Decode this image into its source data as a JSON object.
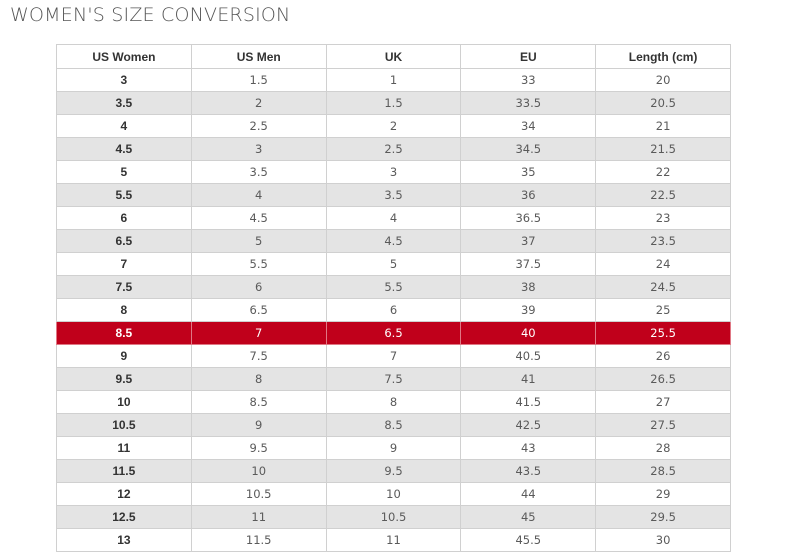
{
  "title": "WOMEN'S SIZE CONVERSION",
  "colors": {
    "highlight_row": "#c0001b",
    "stripe": "#e4e4e4",
    "title": "#555555"
  },
  "table": {
    "headers": [
      "US Women",
      "US Men",
      "UK",
      "EU",
      "Length (cm)"
    ],
    "highlighted_row_index": 11,
    "rows": [
      [
        "3",
        "1.5",
        "1",
        "33",
        "20"
      ],
      [
        "3.5",
        "2",
        "1.5",
        "33.5",
        "20.5"
      ],
      [
        "4",
        "2.5",
        "2",
        "34",
        "21"
      ],
      [
        "4.5",
        "3",
        "2.5",
        "34.5",
        "21.5"
      ],
      [
        "5",
        "3.5",
        "3",
        "35",
        "22"
      ],
      [
        "5.5",
        "4",
        "3.5",
        "36",
        "22.5"
      ],
      [
        "6",
        "4.5",
        "4",
        "36.5",
        "23"
      ],
      [
        "6.5",
        "5",
        "4.5",
        "37",
        "23.5"
      ],
      [
        "7",
        "5.5",
        "5",
        "37.5",
        "24"
      ],
      [
        "7.5",
        "6",
        "5.5",
        "38",
        "24.5"
      ],
      [
        "8",
        "6.5",
        "6",
        "39",
        "25"
      ],
      [
        "8.5",
        "7",
        "6.5",
        "40",
        "25.5"
      ],
      [
        "9",
        "7.5",
        "7",
        "40.5",
        "26"
      ],
      [
        "9.5",
        "8",
        "7.5",
        "41",
        "26.5"
      ],
      [
        "10",
        "8.5",
        "8",
        "41.5",
        "27"
      ],
      [
        "10.5",
        "9",
        "8.5",
        "42.5",
        "27.5"
      ],
      [
        "11",
        "9.5",
        "9",
        "43",
        "28"
      ],
      [
        "11.5",
        "10",
        "9.5",
        "43.5",
        "28.5"
      ],
      [
        "12",
        "10.5",
        "10",
        "44",
        "29"
      ],
      [
        "12.5",
        "11",
        "10.5",
        "45",
        "29.5"
      ],
      [
        "13",
        "11.5",
        "11",
        "45.5",
        "30"
      ]
    ]
  }
}
